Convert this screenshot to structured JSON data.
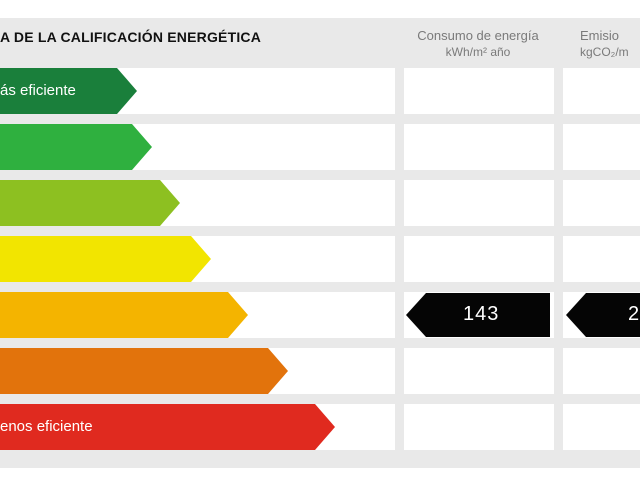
{
  "title": "A DE LA CALIFICACIÓN ENERGÉTICA",
  "columns": {
    "consumo": {
      "line1": "Consumo de energía",
      "line2": "kWh/m² año"
    },
    "emisiones": {
      "line1": "Emisio",
      "line2": "kgCO₂/m"
    }
  },
  "classes": [
    {
      "label": "ás eficiente",
      "color": "#1a7f3b"
    },
    {
      "label": "",
      "color": "#2fb03f"
    },
    {
      "label": "",
      "color": "#8dc021"
    },
    {
      "label": "",
      "color": "#f2e500"
    },
    {
      "label": "",
      "color": "#f4b400"
    },
    {
      "label": "",
      "color": "#e2730c"
    },
    {
      "label": "enos eficiente",
      "color": "#e02a1f"
    }
  ],
  "rating": {
    "consumo_value": "143",
    "emisiones_value": "2"
  }
}
